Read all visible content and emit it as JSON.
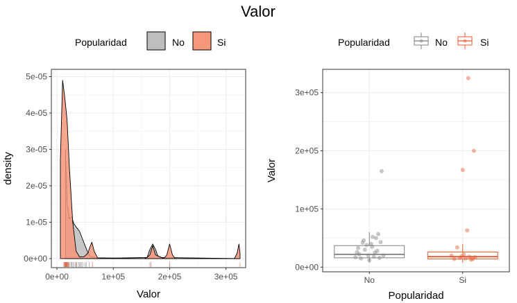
{
  "title": "Valor",
  "colors": {
    "no_fill": "#bdbdbd",
    "si_fill": "#f4977a",
    "no_line": "#808080",
    "si_line": "#e8572e",
    "grid_major": "#ebebeb",
    "grid_minor": "#f5f5f5",
    "border": "#333333",
    "tick_text": "#4d4d4d"
  },
  "legends": {
    "left": {
      "title": "Popularidad",
      "items": [
        "No",
        "Si"
      ]
    },
    "right": {
      "title": "Popularidad",
      "items": [
        "No",
        "Si"
      ]
    }
  },
  "chart_data": [
    {
      "type": "area",
      "subtype": "density",
      "xlabel": "Valor",
      "ylabel": "density",
      "xlim": [
        -10000,
        335000
      ],
      "ylim": [
        -2.5e-06,
        5.2e-05
      ],
      "xticks": [
        0,
        100000,
        200000,
        300000
      ],
      "xtick_labels": [
        "0e+00",
        "1e+05",
        "2e+05",
        "3e+05"
      ],
      "yticks": [
        0,
        1e-05,
        2e-05,
        3e-05,
        4e-05,
        5e-05
      ],
      "ytick_labels": [
        "0e+00",
        "1e-05",
        "2e-05",
        "3e-05",
        "4e-05",
        "5e-05"
      ],
      "grid": true,
      "legend_position": "top",
      "series": [
        {
          "name": "No",
          "x": [
            15000,
            18000,
            22000,
            26000,
            30000,
            35000,
            40000,
            45000,
            50000,
            55000,
            60000,
            70000,
            90000,
            160000,
            165000,
            170000,
            175000,
            180000,
            325000
          ],
          "y": [
            3e-05,
            1.5e-05,
            1.1e-05,
            1.15e-05,
            9.5e-06,
            8.5e-06,
            7.5e-06,
            5.5e-06,
            3.5e-06,
            1.5e-06,
            5e-07,
            2e-07,
            1e-07,
            3e-07,
            2.5e-06,
            4e-06,
            2.5e-06,
            3e-07,
            0
          ]
        },
        {
          "name": "Si",
          "x": [
            6000,
            10000,
            14000,
            18000,
            22000,
            28000,
            34000,
            40000,
            48000,
            55000,
            58000,
            62000,
            66000,
            72000,
            155000,
            160000,
            165000,
            170000,
            175000,
            190000,
            195000,
            200000,
            205000,
            210000,
            315000,
            320000,
            323000,
            325000
          ],
          "y": [
            2.7e-05,
            4.9e-05,
            4.4e-05,
            3.8e-05,
            2.5e-05,
            1e-05,
            2e-06,
            5e-07,
            5e-07,
            1.5e-06,
            3e-06,
            4.5e-06,
            2e-06,
            2e-07,
            0,
            3e-07,
            1e-06,
            3.5e-06,
            1e-06,
            0,
            1e-06,
            4e-06,
            1e-06,
            0,
            0,
            1.5e-06,
            4e-06,
            1.5e-06
          ]
        }
      ]
    },
    {
      "type": "scatter",
      "subtype": "boxplot_with_jitter",
      "xlabel": "Popularidad",
      "ylabel": "Valor",
      "categories": [
        "No",
        "Si"
      ],
      "ylim": [
        -8000,
        340000
      ],
      "yticks": [
        0,
        100000,
        200000,
        300000
      ],
      "ytick_labels": [
        "0e+00",
        "1e+05",
        "2e+05",
        "3e+05"
      ],
      "grid": true,
      "legend_position": "top",
      "boxes": [
        {
          "category": "No",
          "q1": 16000,
          "median": 22000,
          "q3": 37000,
          "lower_whisker": 8000,
          "upper_whisker": 60000
        },
        {
          "category": "Si",
          "q1": 14000,
          "median": 18000,
          "q3": 26000,
          "lower_whisker": 8000,
          "upper_whisker": 40000
        }
      ],
      "points": {
        "No": [
          [
            -0.18,
            22000
          ],
          [
            -0.12,
            42000
          ],
          [
            -0.05,
            38000
          ],
          [
            0.03,
            40000
          ],
          [
            0.1,
            25000
          ],
          [
            0.18,
            16000
          ],
          [
            0.22,
            165000
          ],
          [
            -0.2,
            33000
          ],
          [
            -0.08,
            30000
          ],
          [
            0.05,
            35000
          ],
          [
            0.12,
            50000
          ],
          [
            0.16,
            57000
          ],
          [
            -0.15,
            15000
          ],
          [
            -0.02,
            20000
          ],
          [
            0.08,
            18000
          ],
          [
            0.2,
            43000
          ],
          [
            -0.25,
            17000
          ],
          [
            0.0,
            12000
          ],
          [
            0.14,
            28000
          ],
          [
            -0.1,
            46000
          ],
          [
            0.06,
            52000
          ],
          [
            -0.22,
            26000
          ],
          [
            0.25,
            20000
          ]
        ],
        "Si": [
          [
            0.1,
            325000
          ],
          [
            0.2,
            200000
          ],
          [
            0.0,
            167000
          ],
          [
            0.08,
            63000
          ],
          [
            -0.1,
            34000
          ],
          [
            -0.15,
            14000
          ],
          [
            -0.05,
            16000
          ],
          [
            0.05,
            15000
          ],
          [
            0.12,
            18000
          ],
          [
            0.18,
            14000
          ],
          [
            0.22,
            17000
          ],
          [
            -0.2,
            20000
          ],
          [
            0.02,
            22000
          ],
          [
            0.15,
            13000
          ],
          [
            -0.02,
            19000
          ]
        ]
      }
    }
  ]
}
